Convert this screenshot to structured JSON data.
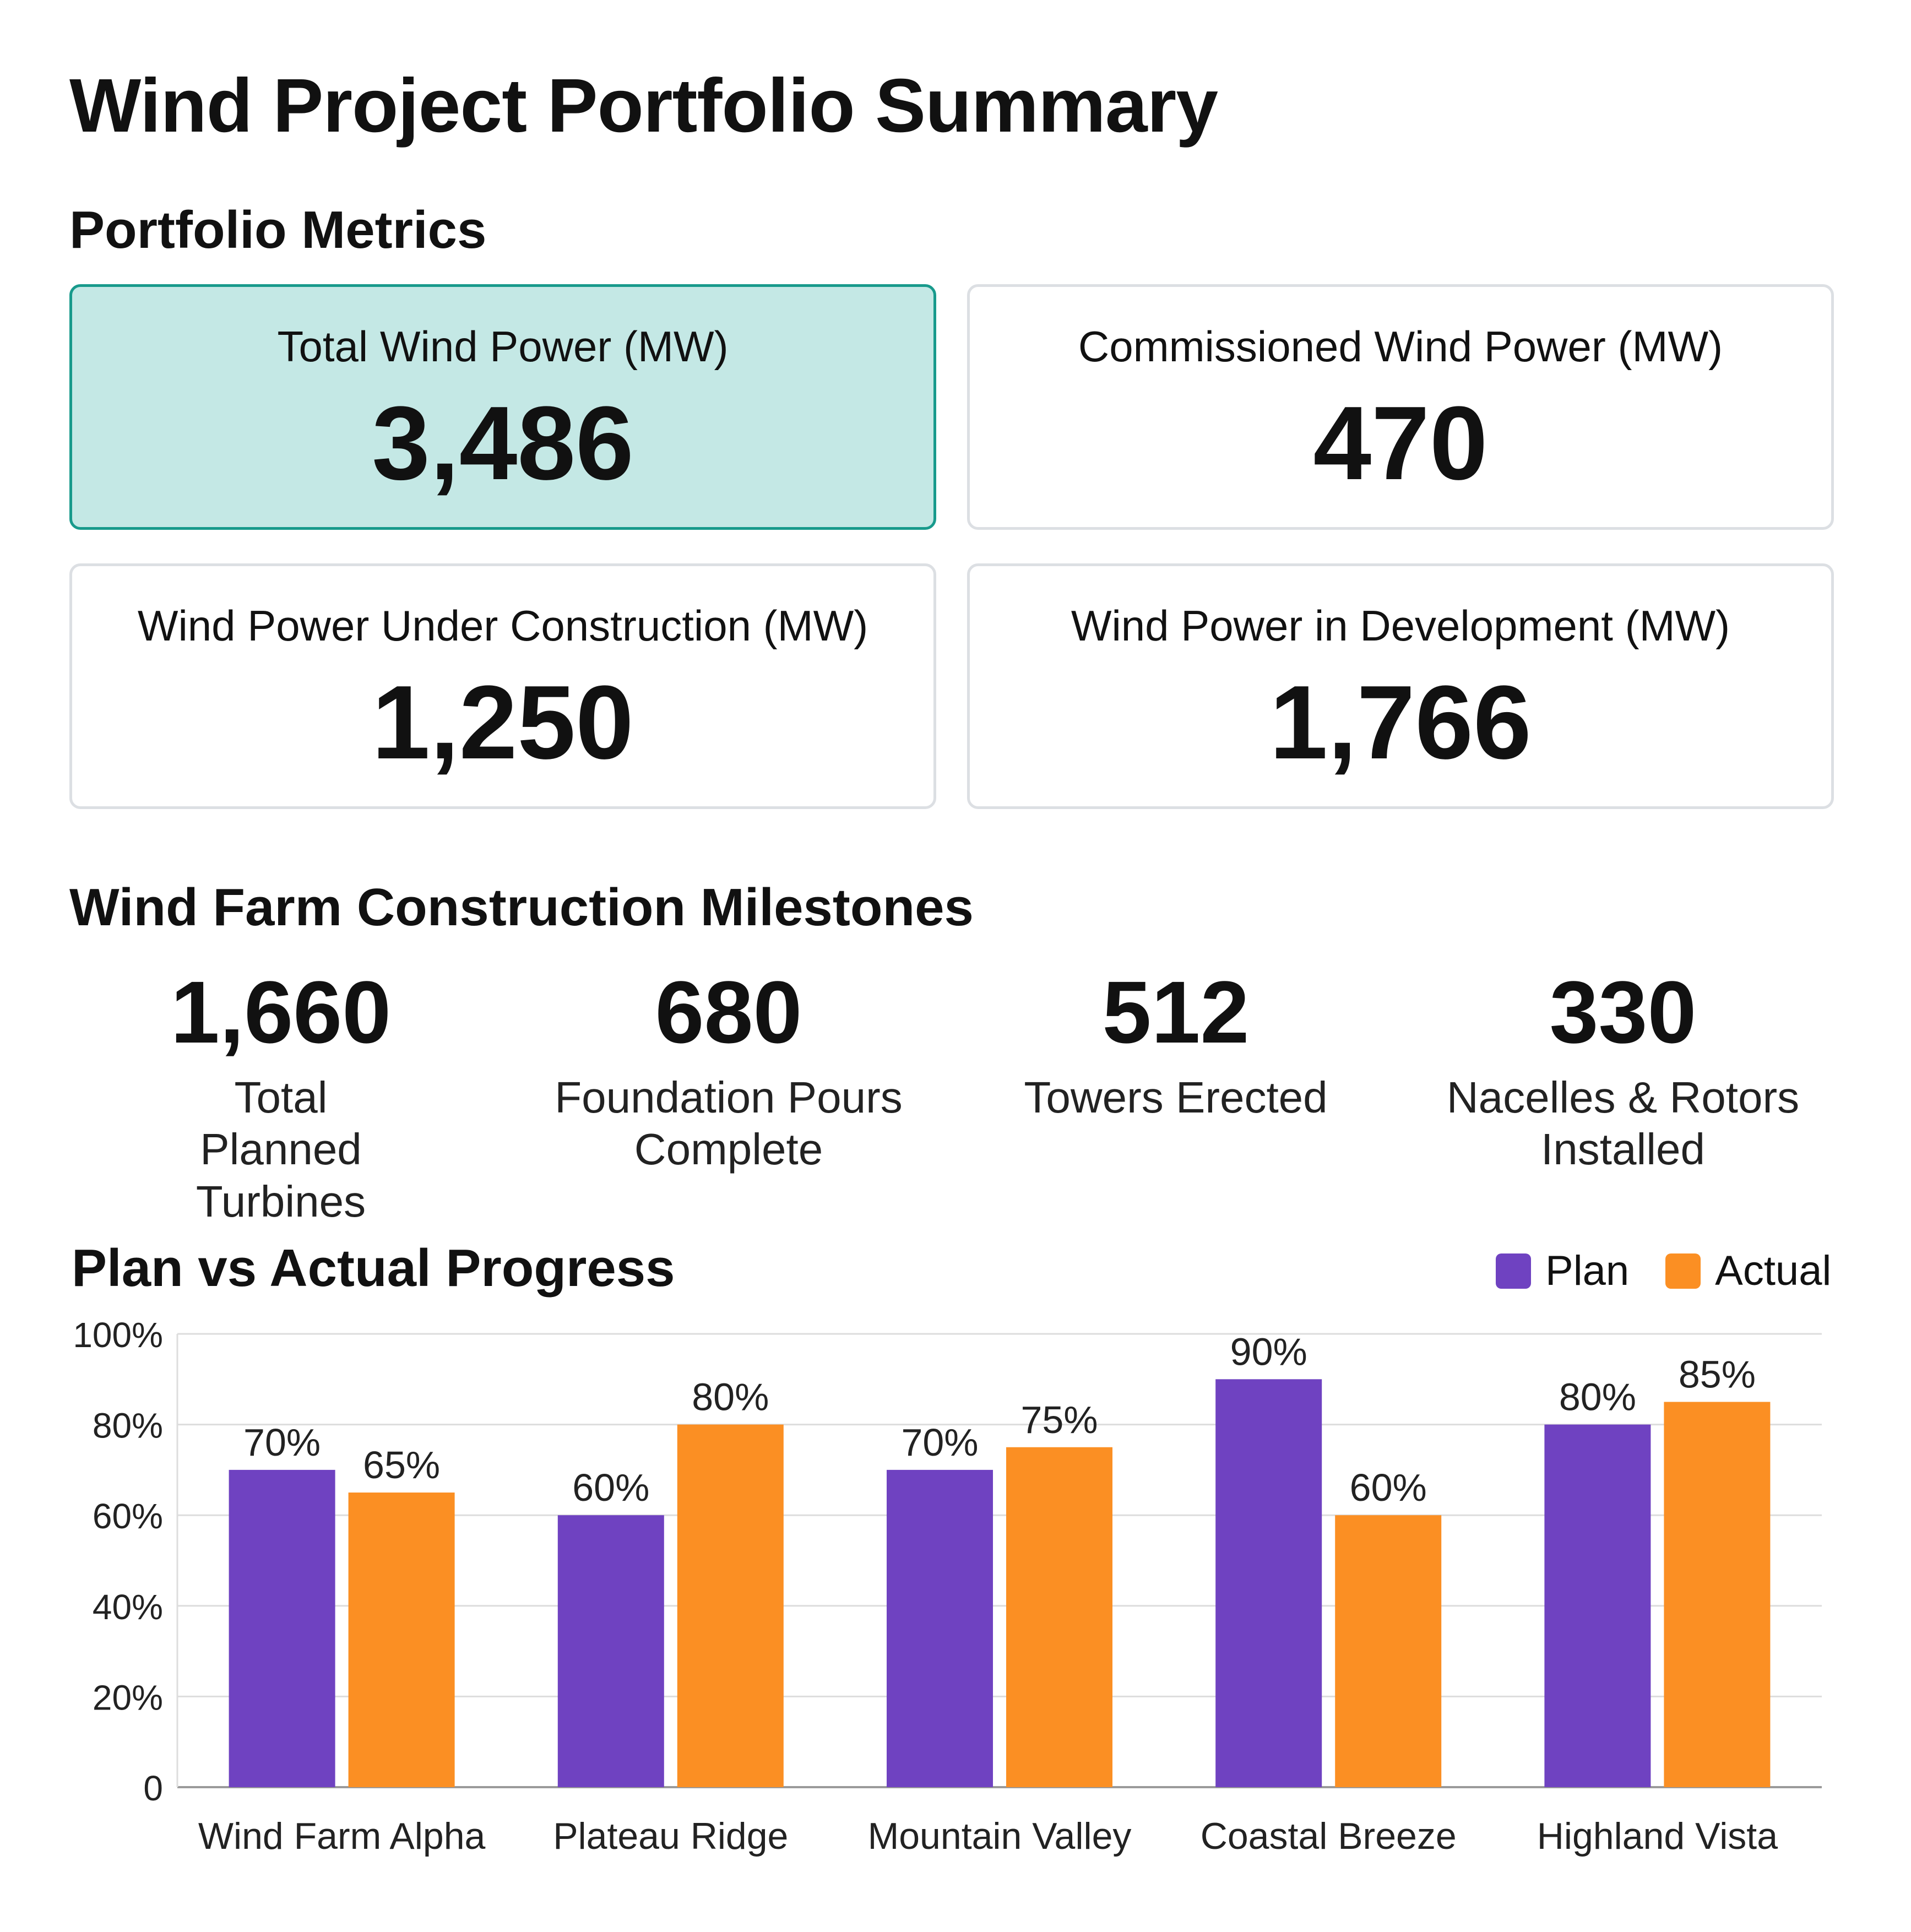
{
  "title": "Wind Project Portfolio Summary",
  "metrics": {
    "heading": "Portfolio Metrics",
    "cards": [
      {
        "label": "Total Wind Power (MW)",
        "value": "3,486"
      },
      {
        "label": "Commissioned Wind Power (MW)",
        "value": "470"
      },
      {
        "label": "Wind Power Under Construction (MW)",
        "value": "1,250"
      },
      {
        "label": "Wind Power in Development (MW)",
        "value": "1,766"
      }
    ]
  },
  "milestones": {
    "heading": "Wind Farm Construction Milestones",
    "items": [
      {
        "value": "1,660",
        "label": "Total Planned Turbines"
      },
      {
        "value": "680",
        "label": "Foundation Pours Complete"
      },
      {
        "value": "512",
        "label": "Towers Erected"
      },
      {
        "value": "330",
        "label": "Nacelles & Rotors Installed"
      }
    ]
  },
  "colors": {
    "plan": "#6f42c1",
    "actual": "#fb8f23",
    "highlight_bg": "#c4e8e5",
    "highlight_border": "#189a8c",
    "gridline": "#dddddd"
  },
  "chart_data": {
    "type": "bar",
    "title": "Plan vs Actual Progress",
    "xlabel": "",
    "ylabel": "",
    "categories": [
      "Wind Farm Alpha",
      "Plateau Ridge",
      "Mountain Valley",
      "Coastal Breeze",
      "Highland Vista"
    ],
    "series": [
      {
        "name": "Plan",
        "values": [
          70,
          60,
          70,
          90,
          80
        ]
      },
      {
        "name": "Actual",
        "values": [
          65,
          80,
          75,
          60,
          85
        ]
      }
    ],
    "ylim": [
      0,
      100
    ],
    "yticks": [
      0,
      20,
      40,
      60,
      80,
      100
    ],
    "ytick_labels": [
      "0",
      "20%",
      "40%",
      "60%",
      "80%",
      "100%"
    ],
    "value_suffix": "%",
    "grid": true,
    "legend": "top-right"
  }
}
